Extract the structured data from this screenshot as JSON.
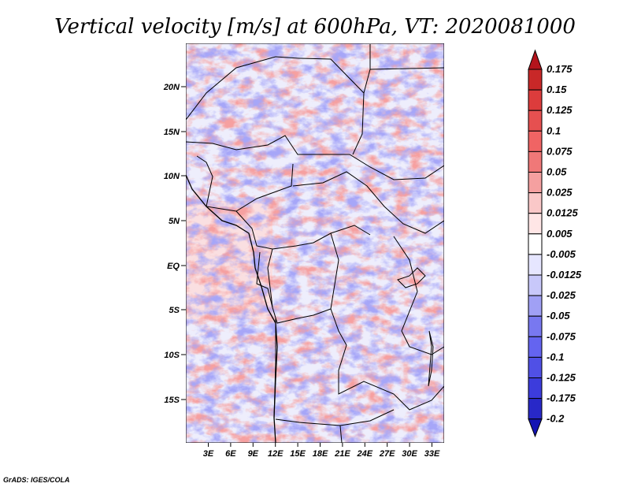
{
  "title": "Vertical velocity [m/s] at 600hPa, VT: 2020081000",
  "credit": "GrADS: IGES/COLA",
  "map": {
    "lon_labels": [
      "3E",
      "6E",
      "9E",
      "12E",
      "15E",
      "18E",
      "21E",
      "24E",
      "27E",
      "30E",
      "33E"
    ],
    "lat_labels": [
      "20N",
      "15N",
      "10N",
      "5N",
      "EQ",
      "5S",
      "10S",
      "15S"
    ]
  },
  "colorbar": {
    "labels": [
      "0.175",
      "0.15",
      "0.125",
      "0.1",
      "0.075",
      "0.05",
      "0.025",
      "0.0125",
      "0.005",
      "-0.005",
      "-0.0125",
      "-0.025",
      "-0.05",
      "-0.075",
      "-0.1",
      "-0.125",
      "-0.175",
      "-0.2"
    ],
    "colors": [
      "#b4141c",
      "#c82828",
      "#dc3c3c",
      "#e65050",
      "#f06464",
      "#f07878",
      "#f5a0a0",
      "#fac8c8",
      "#ffe6e6",
      "#ffffff",
      "#e6e6ff",
      "#c8c8fa",
      "#a0a0f5",
      "#7878f0",
      "#6464f0",
      "#5050e6",
      "#3c3cdc",
      "#2828c8",
      "#1414b4"
    ]
  }
}
